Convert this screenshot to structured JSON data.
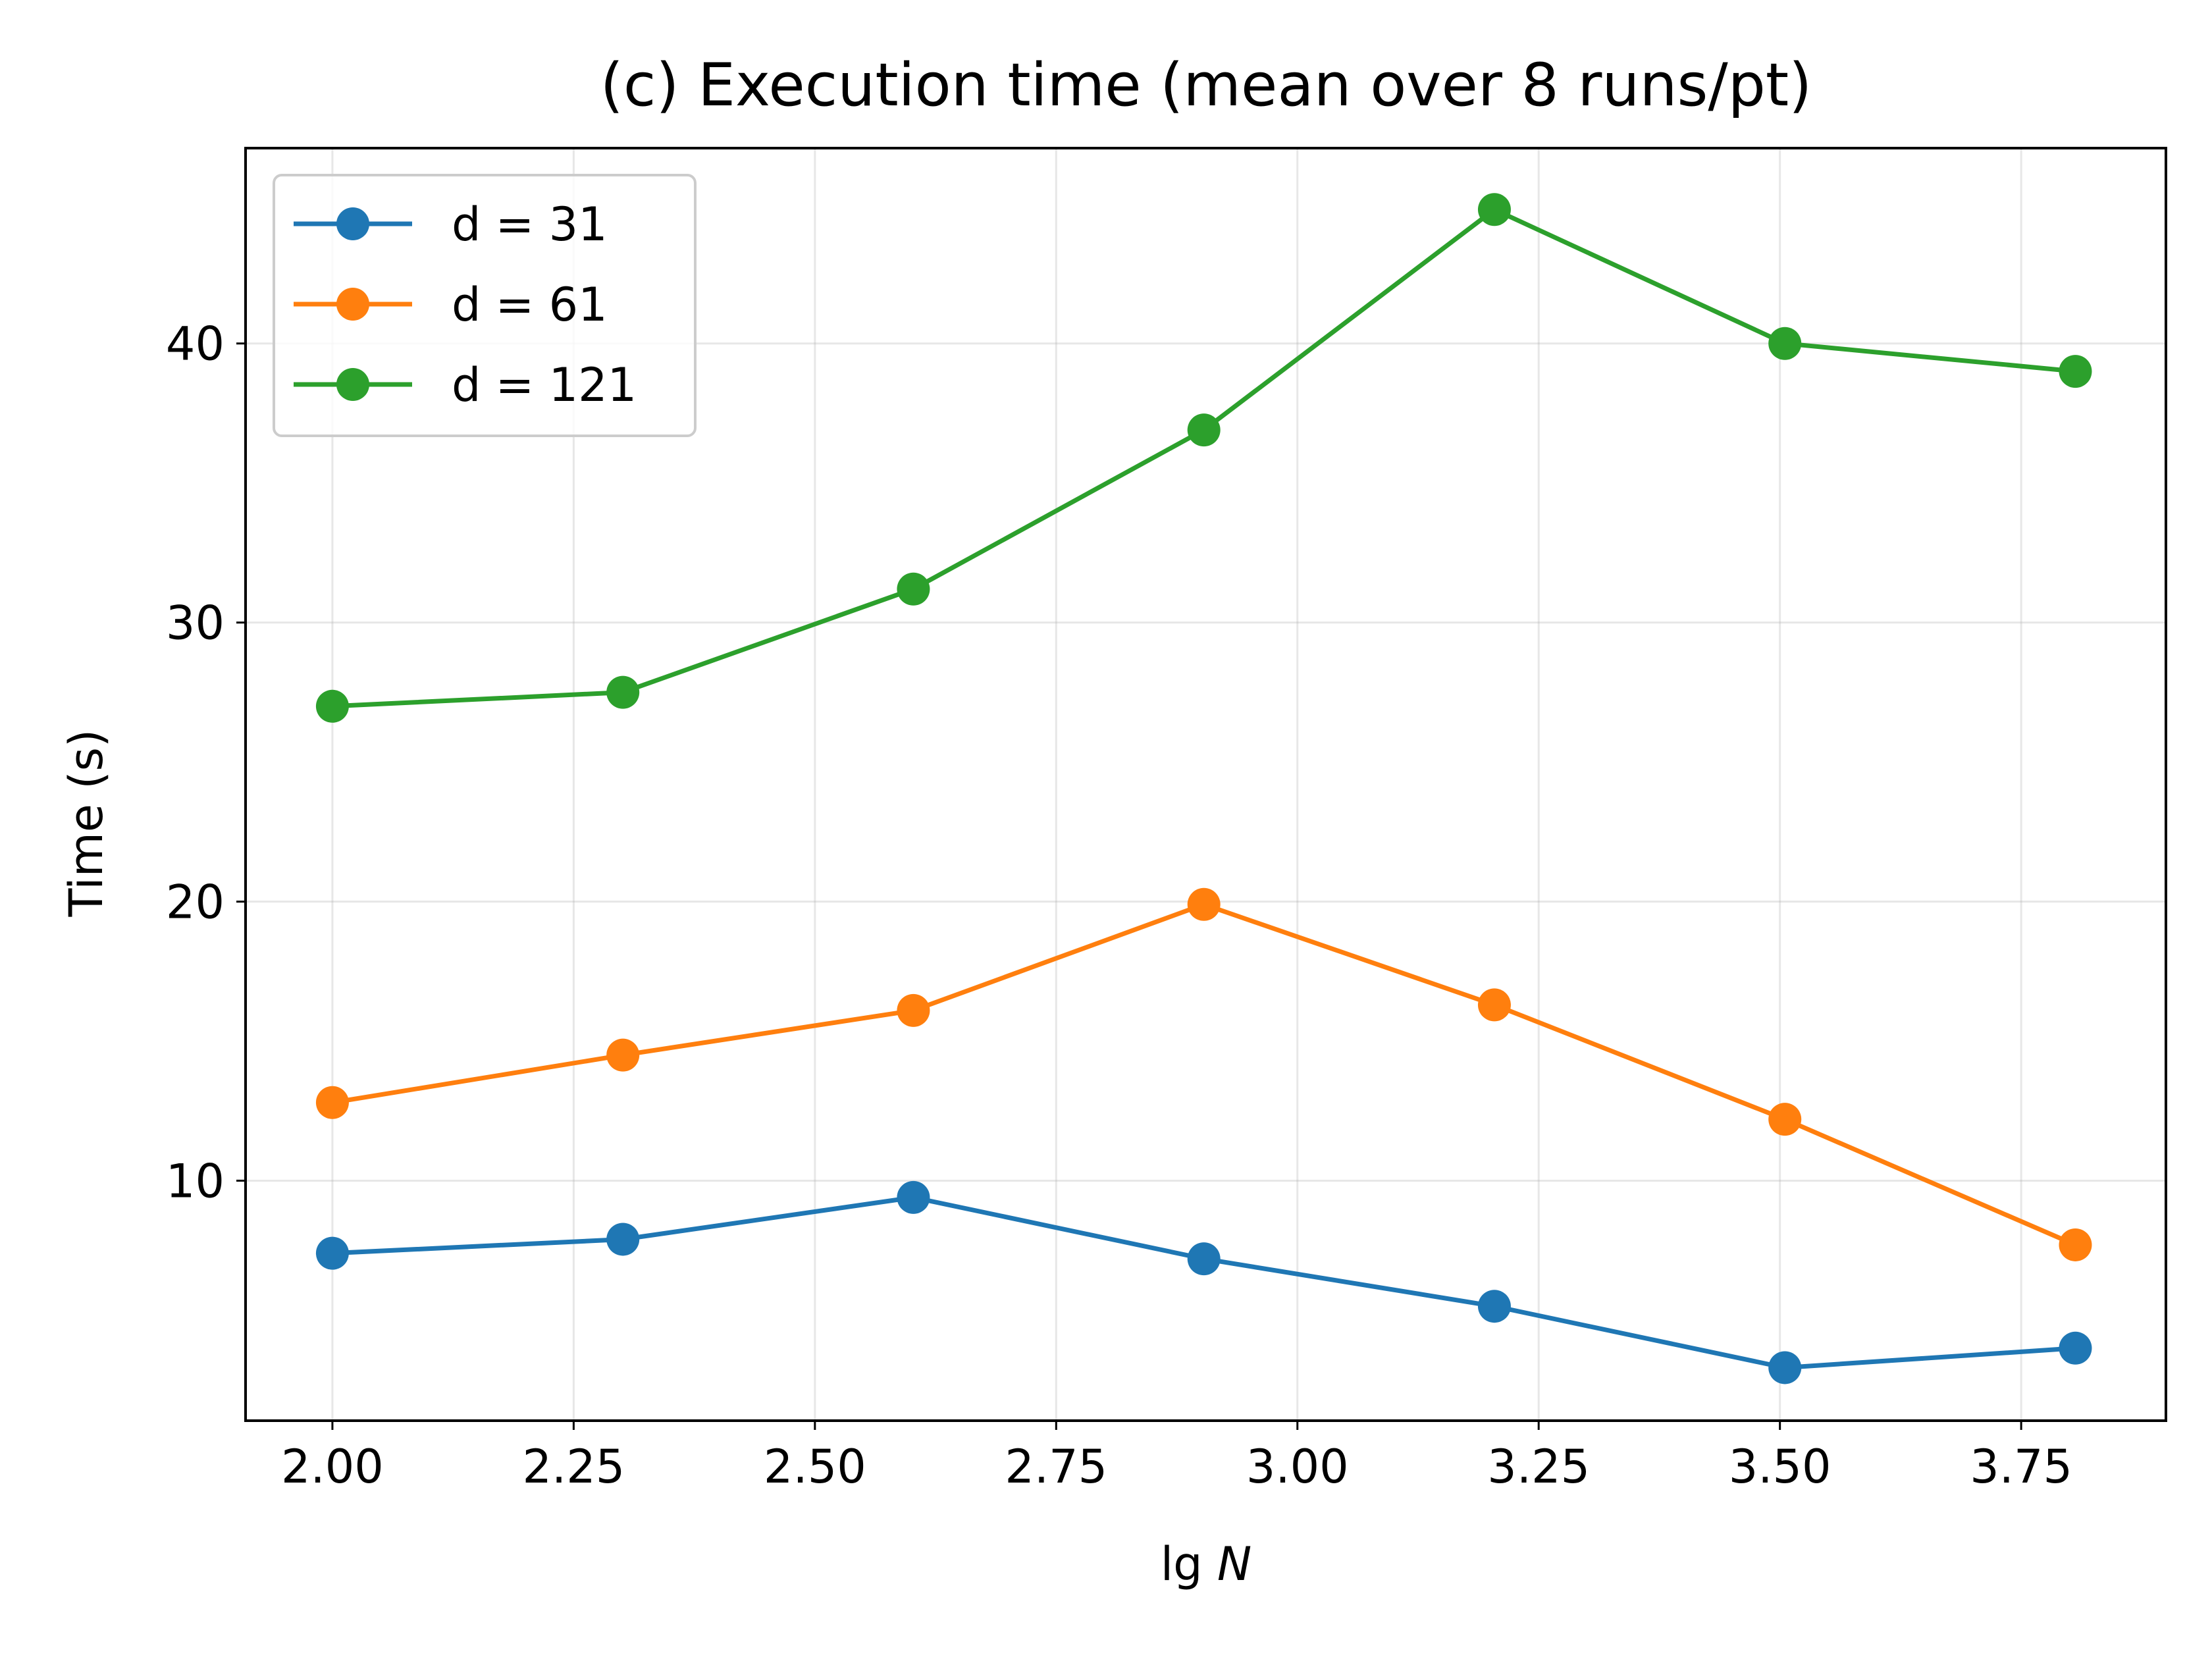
{
  "chart_data": {
    "type": "line",
    "title": "(c) Execution time (mean over 8 runs/pt)",
    "xlabel": "lg N",
    "ylabel": "Time (s)",
    "x": [
      2.0,
      2.30103,
      2.60206,
      2.90309,
      3.20412,
      3.50515,
      3.80618
    ],
    "xlim": [
      1.91,
      3.9
    ],
    "ylim": [
      1.4,
      47.0
    ],
    "xticks": [
      2.0,
      2.25,
      2.5,
      2.75,
      3.0,
      3.25,
      3.5,
      3.75
    ],
    "xtick_labels": [
      "2.00",
      "2.25",
      "2.50",
      "2.75",
      "3.00",
      "3.25",
      "3.50",
      "3.75"
    ],
    "yticks": [
      10,
      20,
      30,
      40
    ],
    "ytick_labels": [
      "10",
      "20",
      "30",
      "40"
    ],
    "grid": true,
    "legend_position": "top-left",
    "series": [
      {
        "name": "d = 31",
        "color": "#1f77b4",
        "values": [
          7.4,
          7.9,
          9.4,
          7.2,
          5.5,
          3.3,
          4.0
        ]
      },
      {
        "name": "d = 61",
        "color": "#ff7f0e",
        "values": [
          12.8,
          14.5,
          16.1,
          19.9,
          16.3,
          12.2,
          7.7
        ]
      },
      {
        "name": "d = 121",
        "color": "#2ca02c",
        "values": [
          27.0,
          27.5,
          31.2,
          36.9,
          44.8,
          40.0,
          39.0
        ]
      }
    ]
  }
}
